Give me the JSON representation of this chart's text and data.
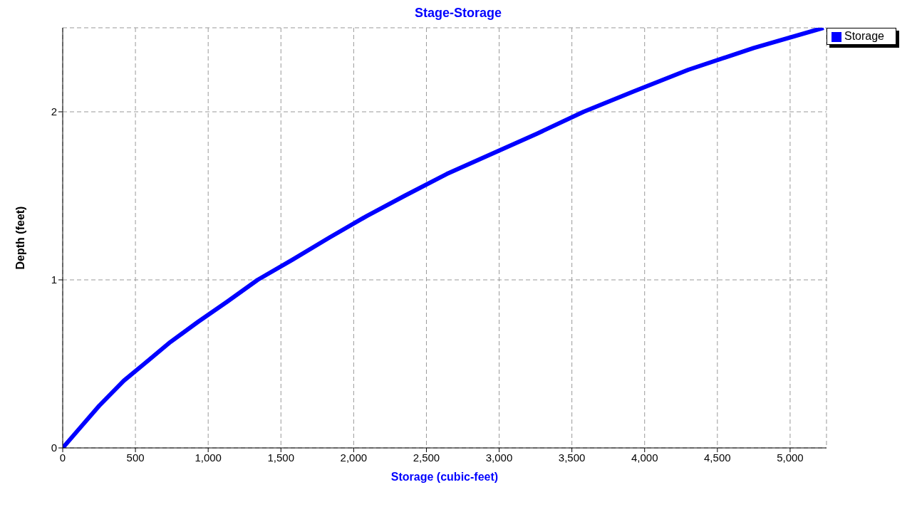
{
  "chart_data": {
    "type": "line",
    "title": "Stage-Storage",
    "xlabel": "Storage (cubic-feet)",
    "ylabel": "Depth  (feet)",
    "x": [
      0,
      100,
      250,
      420,
      560,
      740,
      930,
      1130,
      1340,
      1580,
      1830,
      2090,
      2350,
      2640,
      2950,
      3260,
      3580,
      3920,
      4300,
      4750,
      5230
    ],
    "series": [
      {
        "name": "Storage",
        "color": "#0000ff",
        "values": [
          0,
          0.1,
          0.25,
          0.4,
          0.5,
          0.63,
          0.75,
          0.87,
          1.0,
          1.12,
          1.25,
          1.38,
          1.5,
          1.63,
          1.75,
          1.87,
          2.0,
          2.12,
          2.25,
          2.38,
          2.5
        ]
      }
    ],
    "xlim": [
      0,
      5250
    ],
    "xticks": [
      0,
      {
        "value": 500,
        "label": "500"
      },
      {
        "value": 1000,
        "label": "1,000"
      },
      {
        "value": 1500,
        "label": "1,500"
      },
      {
        "value": 2000,
        "label": "2,000"
      },
      {
        "value": 2500,
        "label": "2,500"
      },
      {
        "value": 3000,
        "label": "3,000"
      },
      {
        "value": 3500,
        "label": "3,500"
      },
      {
        "value": 4000,
        "label": "4,000"
      },
      {
        "value": 4500,
        "label": "4,500"
      },
      {
        "value": 5000,
        "label": "5,000"
      }
    ],
    "ylim": [
      0,
      2.5
    ],
    "yticks": [
      0,
      1,
      2
    ],
    "grid": true,
    "legend": "top right",
    "marker": "none",
    "line_style": "solid"
  }
}
